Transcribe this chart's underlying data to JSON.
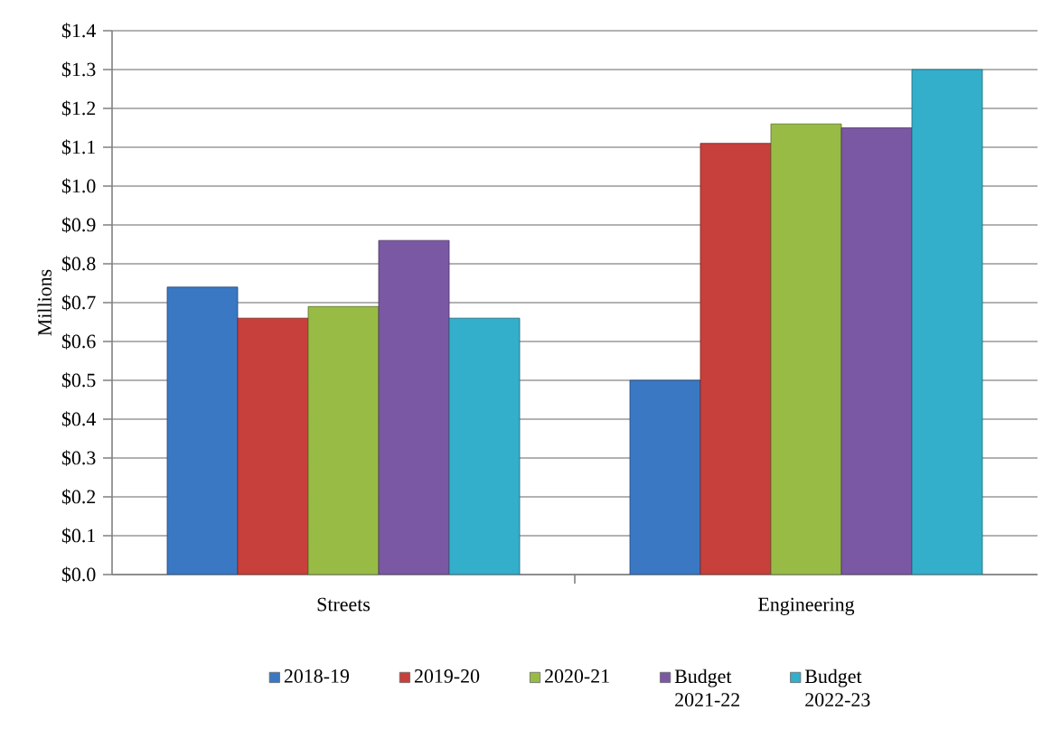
{
  "chart_data": {
    "type": "bar",
    "ylabel": "Millions",
    "categories": [
      "Streets",
      "Engineering"
    ],
    "series": [
      {
        "name": "2018-19",
        "color": "#3a78c4",
        "values": [
          0.74,
          0.5
        ]
      },
      {
        "name": "2019-20",
        "color": "#c8403b",
        "values": [
          0.66,
          1.11
        ]
      },
      {
        "name": "2020-21",
        "color": "#98bb45",
        "values": [
          0.69,
          1.16
        ]
      },
      {
        "name": "Budget 2021-22",
        "color": "#7b58a3",
        "values": [
          0.86,
          1.15
        ]
      },
      {
        "name": "Budget 2022-23",
        "color": "#33aecb",
        "values": [
          0.66,
          1.3
        ]
      }
    ],
    "ylim": [
      0,
      1.4
    ],
    "yticks": [
      {
        "value": 0,
        "label": "$0.0"
      },
      {
        "value": 0.1,
        "label": "$0.1"
      },
      {
        "value": 0.2,
        "label": "$0.2"
      },
      {
        "value": 0.3,
        "label": "$0.3"
      },
      {
        "value": 0.4,
        "label": "$0.4"
      },
      {
        "value": 0.5,
        "label": "$0.5"
      },
      {
        "value": 0.6,
        "label": "$0.6"
      },
      {
        "value": 0.7,
        "label": "$0.7"
      },
      {
        "value": 0.8,
        "label": "$0.8"
      },
      {
        "value": 0.9,
        "label": "$0.9"
      },
      {
        "value": 1.0,
        "label": "$1.0"
      },
      {
        "value": 1.1,
        "label": "$1.1"
      },
      {
        "value": 1.2,
        "label": "$1.2"
      },
      {
        "value": 1.3,
        "label": "$1.3"
      },
      {
        "value": 1.4,
        "label": "$1.4"
      }
    ],
    "grid": "y",
    "legend": "bottom"
  }
}
